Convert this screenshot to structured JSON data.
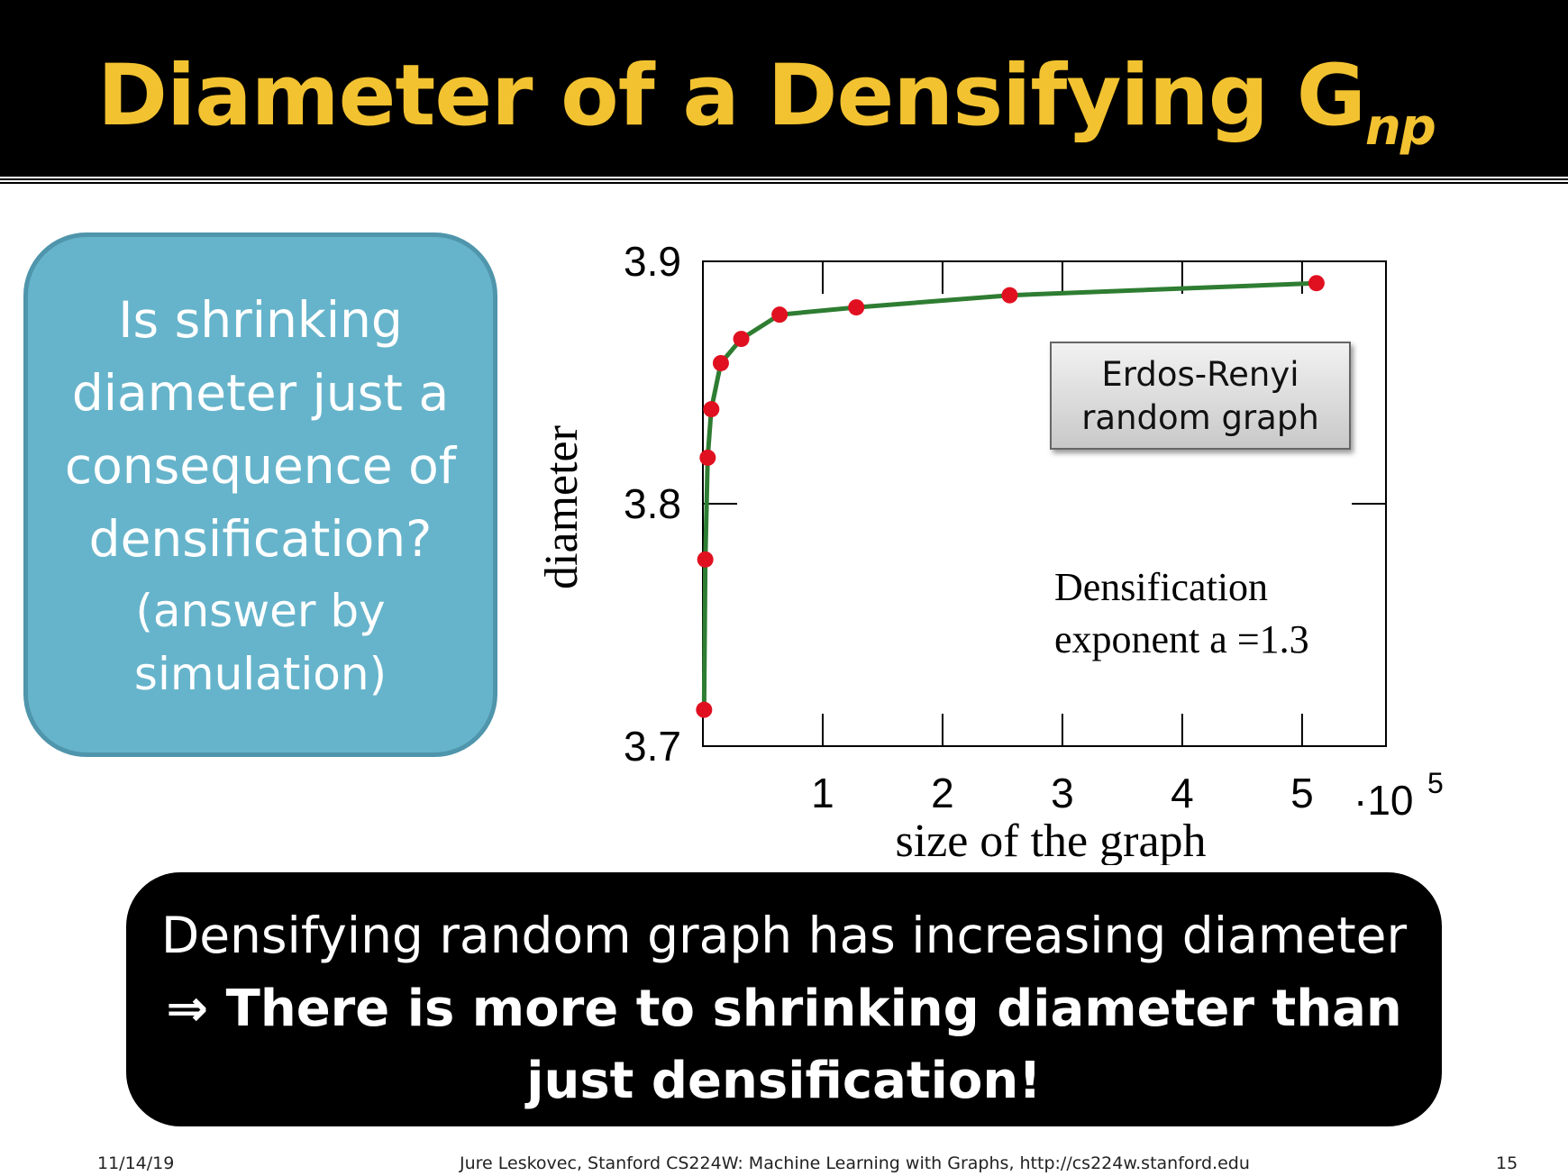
{
  "slide": {
    "title_main": "Diameter of a Densifying G",
    "title_sub": "np",
    "question": {
      "line1": "Is shrinking",
      "line2": "diameter just a",
      "line3": "consequence of",
      "line4": "densification?",
      "sub1": "(answer by",
      "sub2": "simulation)"
    },
    "conclusion": {
      "line1": "Densifying random graph has increasing diameter",
      "line2": "⇒ There is more to shrinking diameter than",
      "line3": "just densification!"
    },
    "footer": {
      "date": "11/14/19",
      "credit": "Jure Leskovec, Stanford CS224W: Machine Learning with Graphs, http://cs224w.stanford.edu",
      "page": "15"
    }
  },
  "chart_data": {
    "type": "line",
    "xlabel": "size of the graph",
    "ylabel": "diameter",
    "x_multiplier_label": "·10",
    "x_multiplier_exp": "5",
    "xlim": [
      0,
      5.7
    ],
    "ylim": [
      3.7,
      3.9
    ],
    "xticks": [
      1,
      2,
      3,
      4,
      5
    ],
    "xtick_labels": [
      "1",
      "2",
      "3",
      "4",
      "5"
    ],
    "yticks": [
      3.7,
      3.8,
      3.9
    ],
    "ytick_labels": [
      "3.7",
      "3.8",
      "3.9"
    ],
    "grid": false,
    "legend_box": {
      "line1": "Erdos-Renyi",
      "line2": "random graph"
    },
    "annotation": {
      "line1": "Densification",
      "line2": "exponent a =1.3"
    },
    "series": [
      {
        "color": "#2e7d32",
        "marker_color": "#e01020",
        "x": [
          0.01,
          0.02,
          0.04,
          0.07,
          0.15,
          0.32,
          0.64,
          1.28,
          2.56,
          5.12
        ],
        "y": [
          3.715,
          3.777,
          3.819,
          3.839,
          3.858,
          3.868,
          3.878,
          3.881,
          3.886,
          3.891
        ]
      }
    ]
  },
  "colors": {
    "title": "#f2c230",
    "question_box": "#66b4cb",
    "conclusion_box": "#000000"
  }
}
